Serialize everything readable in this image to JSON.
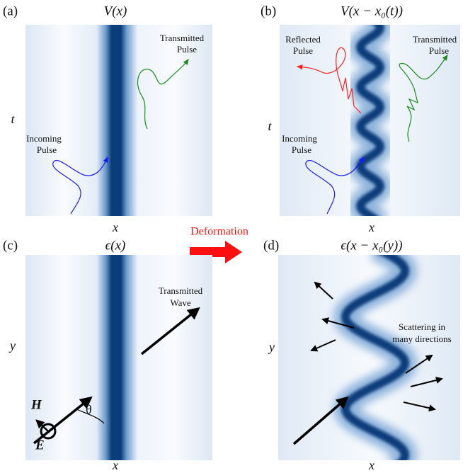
{
  "panels": [
    {
      "label": "(a)",
      "title": "V(x)",
      "x_label": "x",
      "y_label": "t",
      "annotations": [
        {
          "lines": [
            "Transmitted",
            "Pulse"
          ]
        },
        {
          "lines": [
            "Incoming",
            "Pulse"
          ]
        }
      ]
    },
    {
      "label": "(b)",
      "title": "V(x − x₀(t))",
      "x_label": "x",
      "y_label": "t",
      "annotations": [
        {
          "lines": [
            "Reflected",
            "Pulse"
          ]
        },
        {
          "lines": [
            "Transmitted",
            "Pulse"
          ]
        },
        {
          "lines": [
            "Incoming",
            "Pulse"
          ]
        }
      ]
    },
    {
      "label": "(c)",
      "title": "ϵ(x)",
      "x_label": "x",
      "y_label": "y",
      "annotations": [
        {
          "lines": [
            "Transmitted",
            "Wave"
          ]
        }
      ],
      "field_labels": [
        "H",
        "E",
        "θ"
      ]
    },
    {
      "label": "(d)",
      "title": "ϵ(x − x₀(y))",
      "x_label": "x",
      "y_label": "y",
      "annotations": [
        {
          "lines": [
            "Scattering in",
            "many directions"
          ]
        }
      ]
    }
  ],
  "arrow_label": "Deformation"
}
